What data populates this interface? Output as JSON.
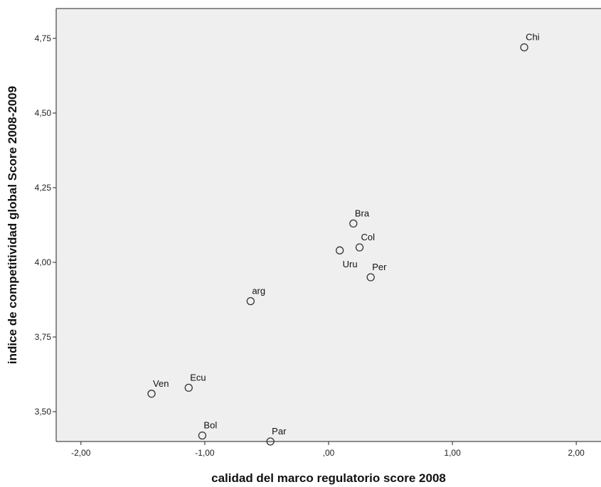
{
  "chart_data": {
    "type": "scatter",
    "title": "",
    "xlabel": "calidad del marco regulatorio score 2008",
    "ylabel": "indice de competitividad global Score 2008-2009",
    "xlim": [
      -2.2,
      2.2
    ],
    "ylim": [
      3.4,
      4.85
    ],
    "xticks": [
      -2.0,
      -1.0,
      0.0,
      1.0,
      2.0
    ],
    "xtick_labels": [
      "-2,00",
      "-1,00",
      ",00",
      "1,00",
      "2,00"
    ],
    "yticks": [
      3.5,
      3.75,
      4.0,
      4.25,
      4.5,
      4.75
    ],
    "ytick_labels": [
      "3,50",
      "3,75",
      "4,00",
      "4,25",
      "4,50",
      "4,75"
    ],
    "grid": false,
    "points": [
      {
        "label": "Chi",
        "x": 1.58,
        "y": 4.72,
        "label_pos": "above-right"
      },
      {
        "label": "Bra",
        "x": 0.2,
        "y": 4.13,
        "label_pos": "above-right"
      },
      {
        "label": "Col",
        "x": 0.25,
        "y": 4.05,
        "label_pos": "above-right"
      },
      {
        "label": "Uru",
        "x": 0.09,
        "y": 4.04,
        "label_pos": "below-right"
      },
      {
        "label": "Per",
        "x": 0.34,
        "y": 3.95,
        "label_pos": "above-right"
      },
      {
        "label": "arg",
        "x": -0.63,
        "y": 3.87,
        "label_pos": "above-right"
      },
      {
        "label": "Ecu",
        "x": -1.13,
        "y": 3.58,
        "label_pos": "above-right"
      },
      {
        "label": "Ven",
        "x": -1.43,
        "y": 3.56,
        "label_pos": "above-right"
      },
      {
        "label": "Bol",
        "x": -1.02,
        "y": 3.42,
        "label_pos": "above-right"
      },
      {
        "label": "Par",
        "x": -0.47,
        "y": 3.4,
        "label_pos": "above-right"
      }
    ],
    "colors": {
      "plot_background": "#efefef",
      "marker_stroke": "#333333",
      "marker_fill": "#efefef",
      "axis": "#222222"
    }
  }
}
